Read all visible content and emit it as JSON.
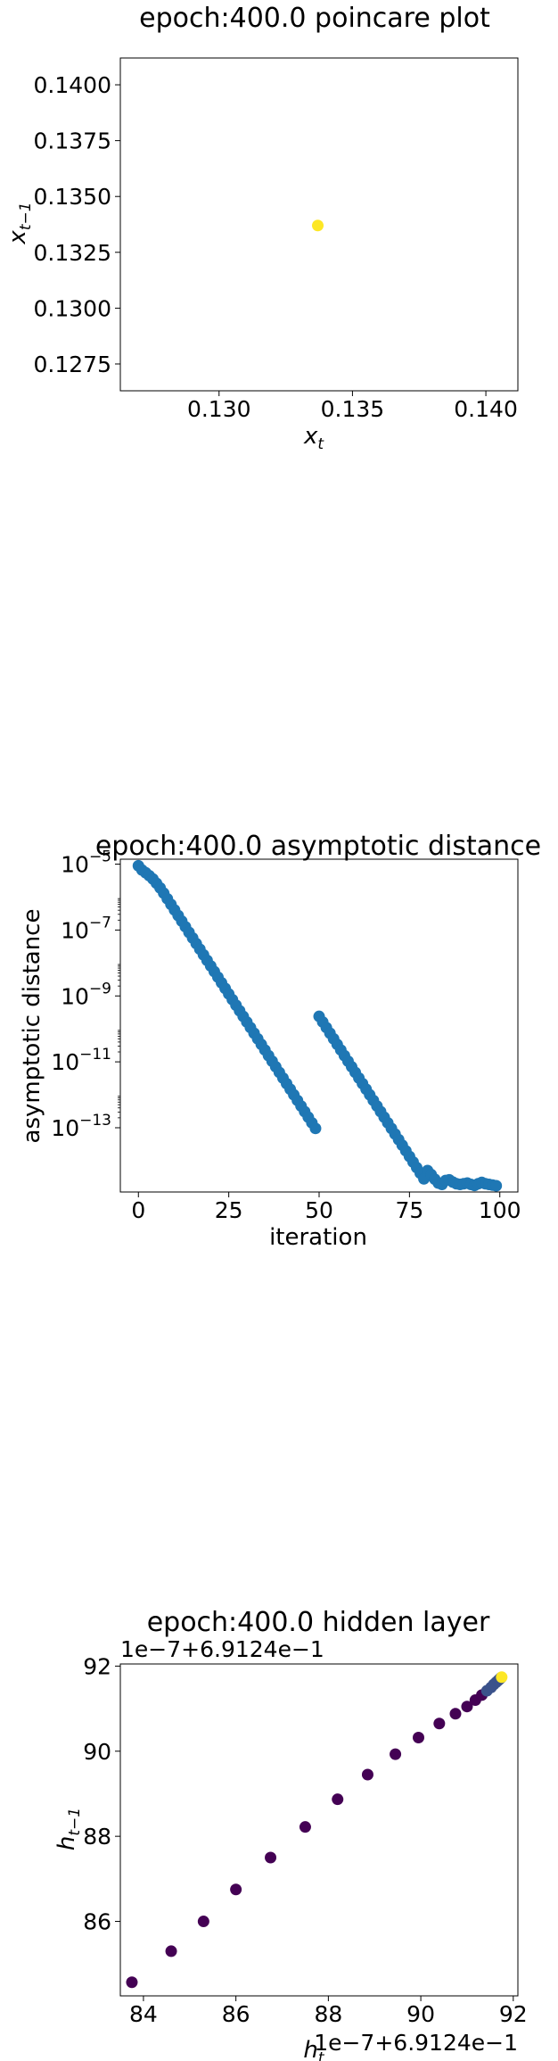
{
  "chart_data": [
    {
      "type": "scatter",
      "title": "epoch:400.0 poincare plot",
      "xlabel": "x",
      "xlabel_sub": "t",
      "ylabel": "x",
      "ylabel_sub": "t−1",
      "xlim": [
        0.1263,
        0.1412
      ],
      "ylim": [
        0.1263,
        0.1412
      ],
      "xticks": [
        0.13,
        0.135,
        0.14
      ],
      "xtick_labels": [
        "0.130",
        "0.135",
        "0.140"
      ],
      "yticks": [
        0.1275,
        0.13,
        0.1325,
        0.135,
        0.1375,
        0.14
      ],
      "ytick_labels": [
        "0.1275",
        "0.1300",
        "0.1325",
        "0.1350",
        "0.1375",
        "0.1400"
      ],
      "points": [
        {
          "x": 0.1337,
          "y": 0.1337
        }
      ],
      "marker_color": "#fde725",
      "grid": false
    },
    {
      "type": "scatter",
      "title": "epoch:400.0 asymptotic distance",
      "xlabel": "iteration",
      "ylabel": "asymptotic distance",
      "yscale": "log",
      "xlim": [
        -5,
        105
      ],
      "ylim_log10": [
        -14.95,
        -4.85
      ],
      "xticks": [
        0,
        25,
        50,
        75,
        100
      ],
      "xtick_labels": [
        "0",
        "25",
        "50",
        "75",
        "100"
      ],
      "ytick_exponents": [
        -5,
        -7,
        -9,
        -11,
        -13
      ],
      "ytick_base": "10",
      "marker_color": "#1f77b4",
      "points_log10": [
        [
          0,
          -5.05
        ],
        [
          1,
          -5.18
        ],
        [
          2,
          -5.26
        ],
        [
          3,
          -5.35
        ],
        [
          4,
          -5.45
        ],
        [
          5,
          -5.58
        ],
        [
          6,
          -5.72
        ],
        [
          7,
          -5.88
        ],
        [
          8,
          -6.05
        ],
        [
          9,
          -6.22
        ],
        [
          10,
          -6.39
        ],
        [
          11,
          -6.56
        ],
        [
          12,
          -6.73
        ],
        [
          13,
          -6.9
        ],
        [
          14,
          -7.07
        ],
        [
          15,
          -7.24
        ],
        [
          16,
          -7.41
        ],
        [
          17,
          -7.58
        ],
        [
          18,
          -7.75
        ],
        [
          19,
          -7.92
        ],
        [
          20,
          -8.09
        ],
        [
          21,
          -8.26
        ],
        [
          22,
          -8.43
        ],
        [
          23,
          -8.6
        ],
        [
          24,
          -8.77
        ],
        [
          25,
          -8.94
        ],
        [
          26,
          -9.11
        ],
        [
          27,
          -9.28
        ],
        [
          28,
          -9.45
        ],
        [
          29,
          -9.62
        ],
        [
          30,
          -9.79
        ],
        [
          31,
          -9.96
        ],
        [
          32,
          -10.13
        ],
        [
          33,
          -10.3
        ],
        [
          34,
          -10.47
        ],
        [
          35,
          -10.64
        ],
        [
          36,
          -10.81
        ],
        [
          37,
          -10.98
        ],
        [
          38,
          -11.15
        ],
        [
          39,
          -11.32
        ],
        [
          40,
          -11.49
        ],
        [
          41,
          -11.66
        ],
        [
          42,
          -11.83
        ],
        [
          43,
          -12.0
        ],
        [
          44,
          -12.17
        ],
        [
          45,
          -12.34
        ],
        [
          46,
          -12.51
        ],
        [
          47,
          -12.68
        ],
        [
          48,
          -12.85
        ],
        [
          49,
          -13.02
        ],
        [
          50,
          -9.62
        ],
        [
          51,
          -9.79
        ],
        [
          52,
          -9.96
        ],
        [
          53,
          -10.13
        ],
        [
          54,
          -10.3
        ],
        [
          55,
          -10.47
        ],
        [
          56,
          -10.64
        ],
        [
          57,
          -10.81
        ],
        [
          58,
          -10.98
        ],
        [
          59,
          -11.15
        ],
        [
          60,
          -11.32
        ],
        [
          61,
          -11.49
        ],
        [
          62,
          -11.66
        ],
        [
          63,
          -11.83
        ],
        [
          64,
          -12.0
        ],
        [
          65,
          -12.17
        ],
        [
          66,
          -12.34
        ],
        [
          67,
          -12.51
        ],
        [
          68,
          -12.68
        ],
        [
          69,
          -12.85
        ],
        [
          70,
          -13.02
        ],
        [
          71,
          -13.19
        ],
        [
          72,
          -13.36
        ],
        [
          73,
          -13.53
        ],
        [
          74,
          -13.7
        ],
        [
          75,
          -13.87
        ],
        [
          76,
          -14.04
        ],
        [
          77,
          -14.21
        ],
        [
          78,
          -14.38
        ],
        [
          79,
          -14.55
        ],
        [
          80,
          -14.3
        ],
        [
          81,
          -14.42
        ],
        [
          82,
          -14.56
        ],
        [
          83,
          -14.68
        ],
        [
          84,
          -14.72
        ],
        [
          85,
          -14.6
        ],
        [
          86,
          -14.58
        ],
        [
          87,
          -14.65
        ],
        [
          88,
          -14.7
        ],
        [
          89,
          -14.72
        ],
        [
          90,
          -14.7
        ],
        [
          91,
          -14.68
        ],
        [
          92,
          -14.72
        ],
        [
          93,
          -14.75
        ],
        [
          94,
          -14.7
        ],
        [
          95,
          -14.66
        ],
        [
          96,
          -14.7
        ],
        [
          97,
          -14.72
        ],
        [
          98,
          -14.74
        ],
        [
          99,
          -14.76
        ]
      ],
      "grid": false
    },
    {
      "type": "scatter",
      "title": "epoch:400.0 hidden layer",
      "xlabel": "h",
      "xlabel_sub": "t",
      "ylabel": "h",
      "ylabel_sub": "t−1",
      "x_offset_label": "1e−7+6.9124e−1",
      "y_offset_label": "1e−7+6.9124e−1",
      "xlim": [
        83.5,
        92.1
      ],
      "ylim": [
        84.25,
        92.05
      ],
      "xticks": [
        84,
        86,
        88,
        90,
        92
      ],
      "xtick_labels": [
        "84",
        "86",
        "88",
        "90",
        "92"
      ],
      "yticks": [
        86,
        88,
        90,
        92
      ],
      "ytick_labels": [
        "86",
        "88",
        "90",
        "92"
      ],
      "colormap": [
        "#440154",
        "#3b528b",
        "#21918c",
        "#5ec962",
        "#fde725"
      ],
      "points": [
        {
          "x": 83.75,
          "y": 84.57
        },
        {
          "x": 84.6,
          "y": 85.3
        },
        {
          "x": 85.3,
          "y": 86.0
        },
        {
          "x": 86.0,
          "y": 86.75
        },
        {
          "x": 86.75,
          "y": 87.5
        },
        {
          "x": 87.5,
          "y": 88.22
        },
        {
          "x": 88.2,
          "y": 88.87
        },
        {
          "x": 88.85,
          "y": 89.45
        },
        {
          "x": 89.45,
          "y": 89.93
        },
        {
          "x": 89.95,
          "y": 90.32
        },
        {
          "x": 90.4,
          "y": 90.65
        },
        {
          "x": 90.75,
          "y": 90.88
        },
        {
          "x": 91.0,
          "y": 91.05
        },
        {
          "x": 91.18,
          "y": 91.2
        },
        {
          "x": 91.32,
          "y": 91.32
        },
        {
          "x": 91.43,
          "y": 91.42
        },
        {
          "x": 91.52,
          "y": 91.5
        },
        {
          "x": 91.58,
          "y": 91.57
        },
        {
          "x": 91.63,
          "y": 91.62
        },
        {
          "x": 91.67,
          "y": 91.66
        },
        {
          "x": 91.7,
          "y": 91.69
        },
        {
          "x": 91.72,
          "y": 91.71
        },
        {
          "x": 91.74,
          "y": 91.73
        }
      ],
      "last_point": {
        "x": 91.75,
        "y": 91.74
      },
      "grid": false
    }
  ]
}
